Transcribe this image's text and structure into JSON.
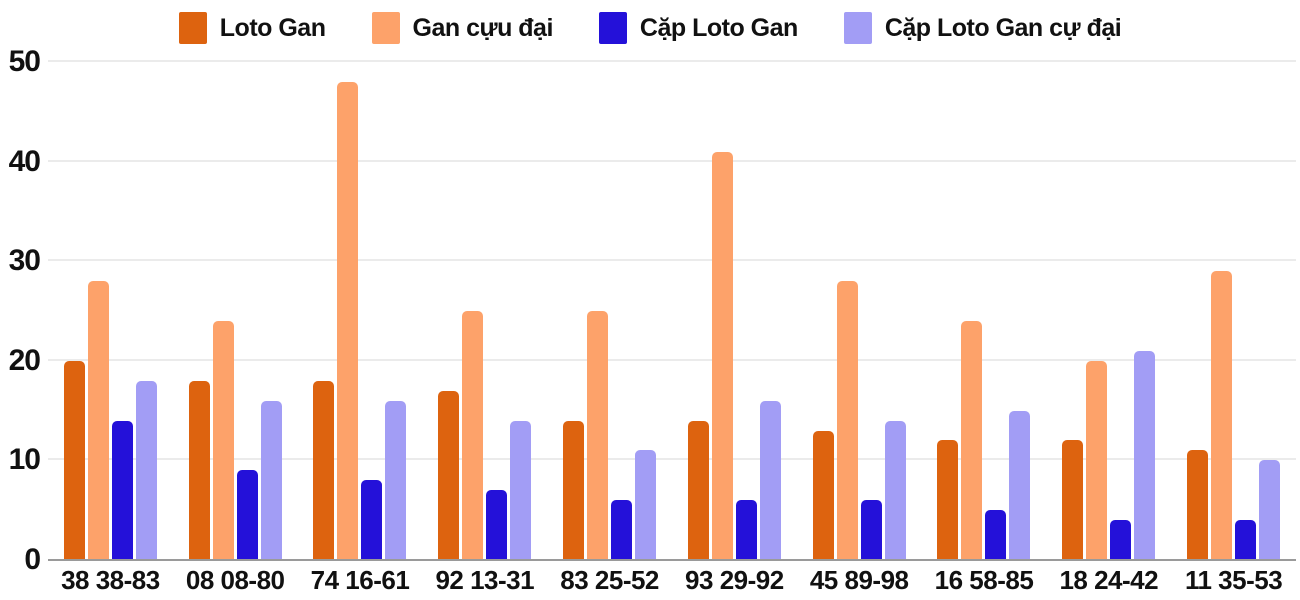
{
  "chart_data": {
    "type": "bar",
    "title": "",
    "categories": [
      "38 38-83",
      "08 08-80",
      "74 16-61",
      "92 13-31",
      "83 25-52",
      "93 29-92",
      "45 89-98",
      "16 58-85",
      "18 24-42",
      "11 35-53"
    ],
    "series": [
      {
        "name": "Loto Gan",
        "color": "#dd630f",
        "values": [
          20,
          18,
          18,
          17,
          14,
          14,
          13,
          12,
          12,
          11
        ]
      },
      {
        "name": "Gan cựu đại",
        "color": "#fda26a",
        "values": [
          28,
          24,
          48,
          25,
          25,
          41,
          28,
          24,
          20,
          29
        ]
      },
      {
        "name": "Cặp Loto Gan",
        "color": "#2411d9",
        "values": [
          14,
          9,
          8,
          7,
          6,
          6,
          6,
          5,
          4,
          4
        ]
      },
      {
        "name": "Cặp Loto Gan cự đại",
        "color": "#a29df5",
        "values": [
          18,
          16,
          16,
          14,
          11,
          16,
          14,
          15,
          21,
          10
        ]
      }
    ],
    "ylim": [
      0,
      50
    ],
    "yticks": [
      0,
      10,
      20,
      30,
      40,
      50
    ],
    "grid": true,
    "legend_position": "top",
    "colors": {
      "background": "#ffffff",
      "text": "#111111",
      "gridline": "#ebebeb",
      "baseline": "#9a9a9a"
    }
  }
}
